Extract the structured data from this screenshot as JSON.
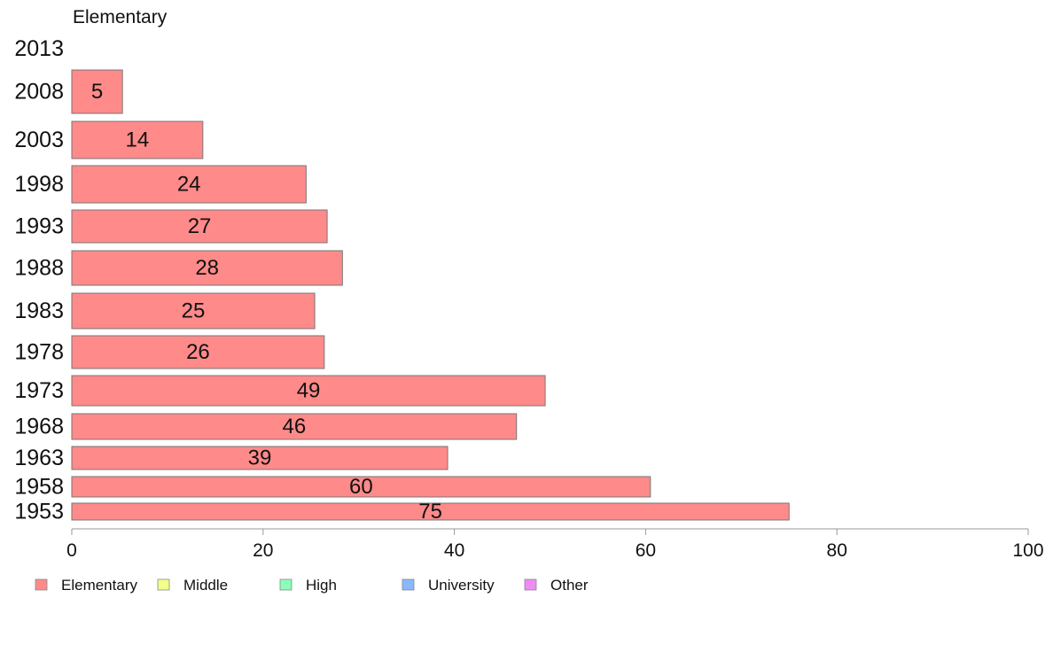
{
  "chart_data": {
    "type": "bar",
    "orientation": "horizontal",
    "title": "Elementary",
    "categories": [
      "2013",
      "2008",
      "2003",
      "1998",
      "1993",
      "1988",
      "1983",
      "1978",
      "1973",
      "1968",
      "1963",
      "1958",
      "1953"
    ],
    "series": [
      {
        "name": "Elementary",
        "color": "#ff8a8a",
        "values": [
          null,
          5.3,
          13.7,
          24.5,
          26.7,
          28.3,
          25.4,
          26.4,
          49.5,
          46.5,
          39.3,
          60.5,
          75.0
        ],
        "labels": [
          "",
          "5",
          "14",
          "24",
          "27",
          "28",
          "25",
          "26",
          "49",
          "46",
          "39",
          "60",
          "75"
        ]
      }
    ],
    "xlim": [
      0,
      100
    ],
    "xticks": [
      "0",
      "20",
      "40",
      "60",
      "80",
      "100"
    ],
    "grid": false,
    "legend": {
      "placement": "bottom-left",
      "entries": [
        {
          "label": "Elementary",
          "color": "#ff8a8a"
        },
        {
          "label": "Middle",
          "color": "#f2ff8a"
        },
        {
          "label": "High",
          "color": "#8affb8"
        },
        {
          "label": "University",
          "color": "#8ab8ff"
        },
        {
          "label": "Other",
          "color": "#f08af7"
        }
      ]
    }
  }
}
